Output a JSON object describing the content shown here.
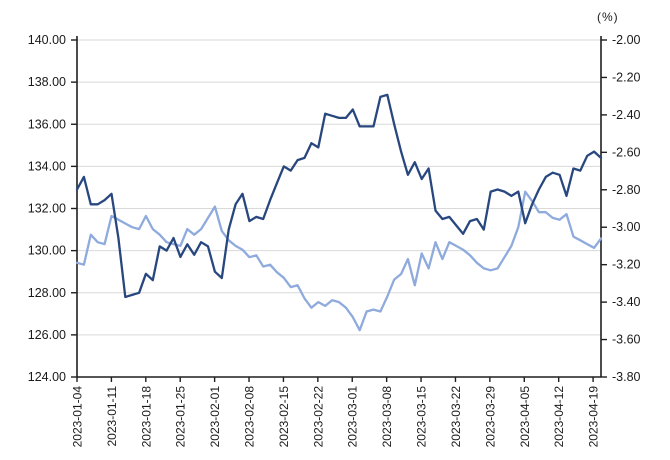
{
  "chart_data": {
    "type": "line",
    "title": "",
    "x_labels": [
      "2023-01-04",
      "2023-01-11",
      "2023-01-18",
      "2023-01-25",
      "2023-02-01",
      "2023-02-08",
      "2023-02-15",
      "2023-02-22",
      "2023-03-01",
      "2023-03-08",
      "2023-03-15",
      "2023-03-22",
      "2023-03-29",
      "2023-04-05",
      "2023-04-12",
      "2023-04-19"
    ],
    "points_per_week": 5,
    "left_axis": {
      "min": 124.0,
      "max": 140.0,
      "step": 2.0,
      "tick_labels": [
        "140.00",
        "138.00",
        "136.00",
        "134.00",
        "132.00",
        "130.00",
        "128.00",
        "126.00",
        "124.00"
      ]
    },
    "right_axis": {
      "min": -3.8,
      "max": -2.0,
      "step": 0.2,
      "unit": "(%)",
      "tick_labels": [
        "-2.00",
        "-2.20",
        "-2.40",
        "-2.60",
        "-2.80",
        "-3.00",
        "-3.20",
        "-3.40",
        "-3.60",
        "-3.80"
      ]
    },
    "grid": "horizontal",
    "legend": "none",
    "series": [
      {
        "name": "navy-series-left-axis",
        "axis": "left",
        "color": "#28477F",
        "values": [
          132.9,
          133.5,
          132.2,
          132.2,
          132.4,
          132.7,
          130.6,
          127.8,
          127.9,
          128.0,
          128.9,
          128.6,
          130.2,
          130.0,
          130.6,
          129.7,
          130.3,
          129.8,
          130.4,
          130.2,
          129.0,
          128.7,
          131.0,
          132.2,
          132.7,
          131.4,
          131.6,
          131.5,
          132.4,
          133.2,
          134.0,
          133.8,
          134.3,
          134.4,
          135.1,
          134.9,
          136.5,
          136.4,
          136.3,
          136.3,
          136.7,
          135.9,
          135.9,
          135.9,
          137.3,
          137.4,
          136.0,
          134.7,
          133.6,
          134.2,
          133.4,
          133.9,
          131.9,
          131.5,
          131.6,
          131.2,
          130.8,
          131.4,
          131.5,
          131.0,
          132.8,
          132.9,
          132.8,
          132.6,
          132.8,
          131.3,
          132.2,
          132.9,
          133.5,
          133.7,
          133.6,
          132.6,
          133.9,
          133.8,
          134.5,
          134.7,
          134.4
        ]
      },
      {
        "name": "lightblue-series-right-axis",
        "axis": "right",
        "color": "#8FAADC",
        "values": [
          -3.19,
          -3.2,
          -3.04,
          -3.08,
          -3.09,
          -2.94,
          -2.96,
          -2.98,
          -3.0,
          -3.01,
          -2.94,
          -3.01,
          -3.04,
          -3.08,
          -3.09,
          -3.1,
          -3.01,
          -3.04,
          -3.01,
          -2.95,
          -2.89,
          -3.02,
          -3.07,
          -3.1,
          -3.12,
          -3.16,
          -3.15,
          -3.21,
          -3.2,
          -3.24,
          -3.27,
          -3.32,
          -3.31,
          -3.38,
          -3.43,
          -3.4,
          -3.42,
          -3.39,
          -3.4,
          -3.43,
          -3.48,
          -3.55,
          -3.45,
          -3.44,
          -3.45,
          -3.37,
          -3.28,
          -3.25,
          -3.17,
          -3.31,
          -3.14,
          -3.22,
          -3.08,
          -3.17,
          -3.08,
          -3.1,
          -3.12,
          -3.15,
          -3.19,
          -3.22,
          -3.23,
          -3.22,
          -3.16,
          -3.1,
          -3.0,
          -2.81,
          -2.86,
          -2.92,
          -2.92,
          -2.95,
          -2.96,
          -2.93,
          -3.05,
          -3.07,
          -3.09,
          -3.11,
          -3.06
        ]
      }
    ],
    "colors": {
      "gridline": "#D9D9D9",
      "axis": "#1F1F1F",
      "background": "#FFFFFF"
    }
  }
}
